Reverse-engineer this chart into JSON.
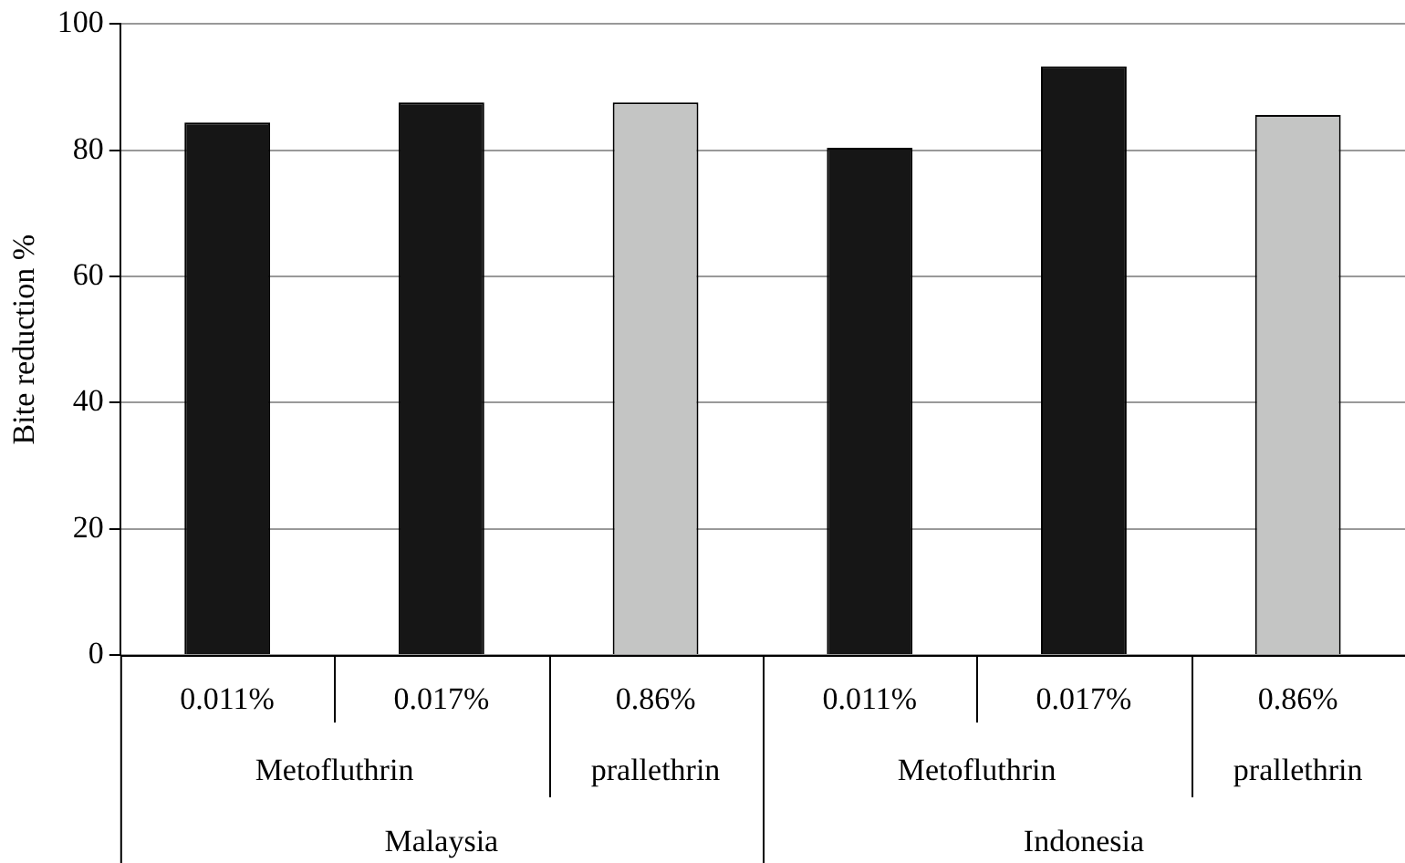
{
  "chart_data": {
    "type": "bar",
    "ylabel": "Bite reduction %",
    "categories": [
      "0.011%",
      "0.017%",
      "0.86%",
      "0.011%",
      "0.017%",
      "0.86%"
    ],
    "values": [
      84.4,
      87.6,
      87.6,
      80.4,
      93.3,
      85.6
    ],
    "colors": [
      "#161616",
      "#161616",
      "#c4c5c4",
      "#161616",
      "#161616",
      "#c4c5c4"
    ],
    "ylim": [
      0,
      100
    ],
    "yticks": [
      0,
      20,
      40,
      60,
      80,
      100
    ],
    "grid": "y",
    "annotations": [
      "Metofluthrin",
      "prallethrin",
      "Metofluthrin",
      "prallethrin",
      "Malaysia",
      "Indonesia"
    ]
  }
}
